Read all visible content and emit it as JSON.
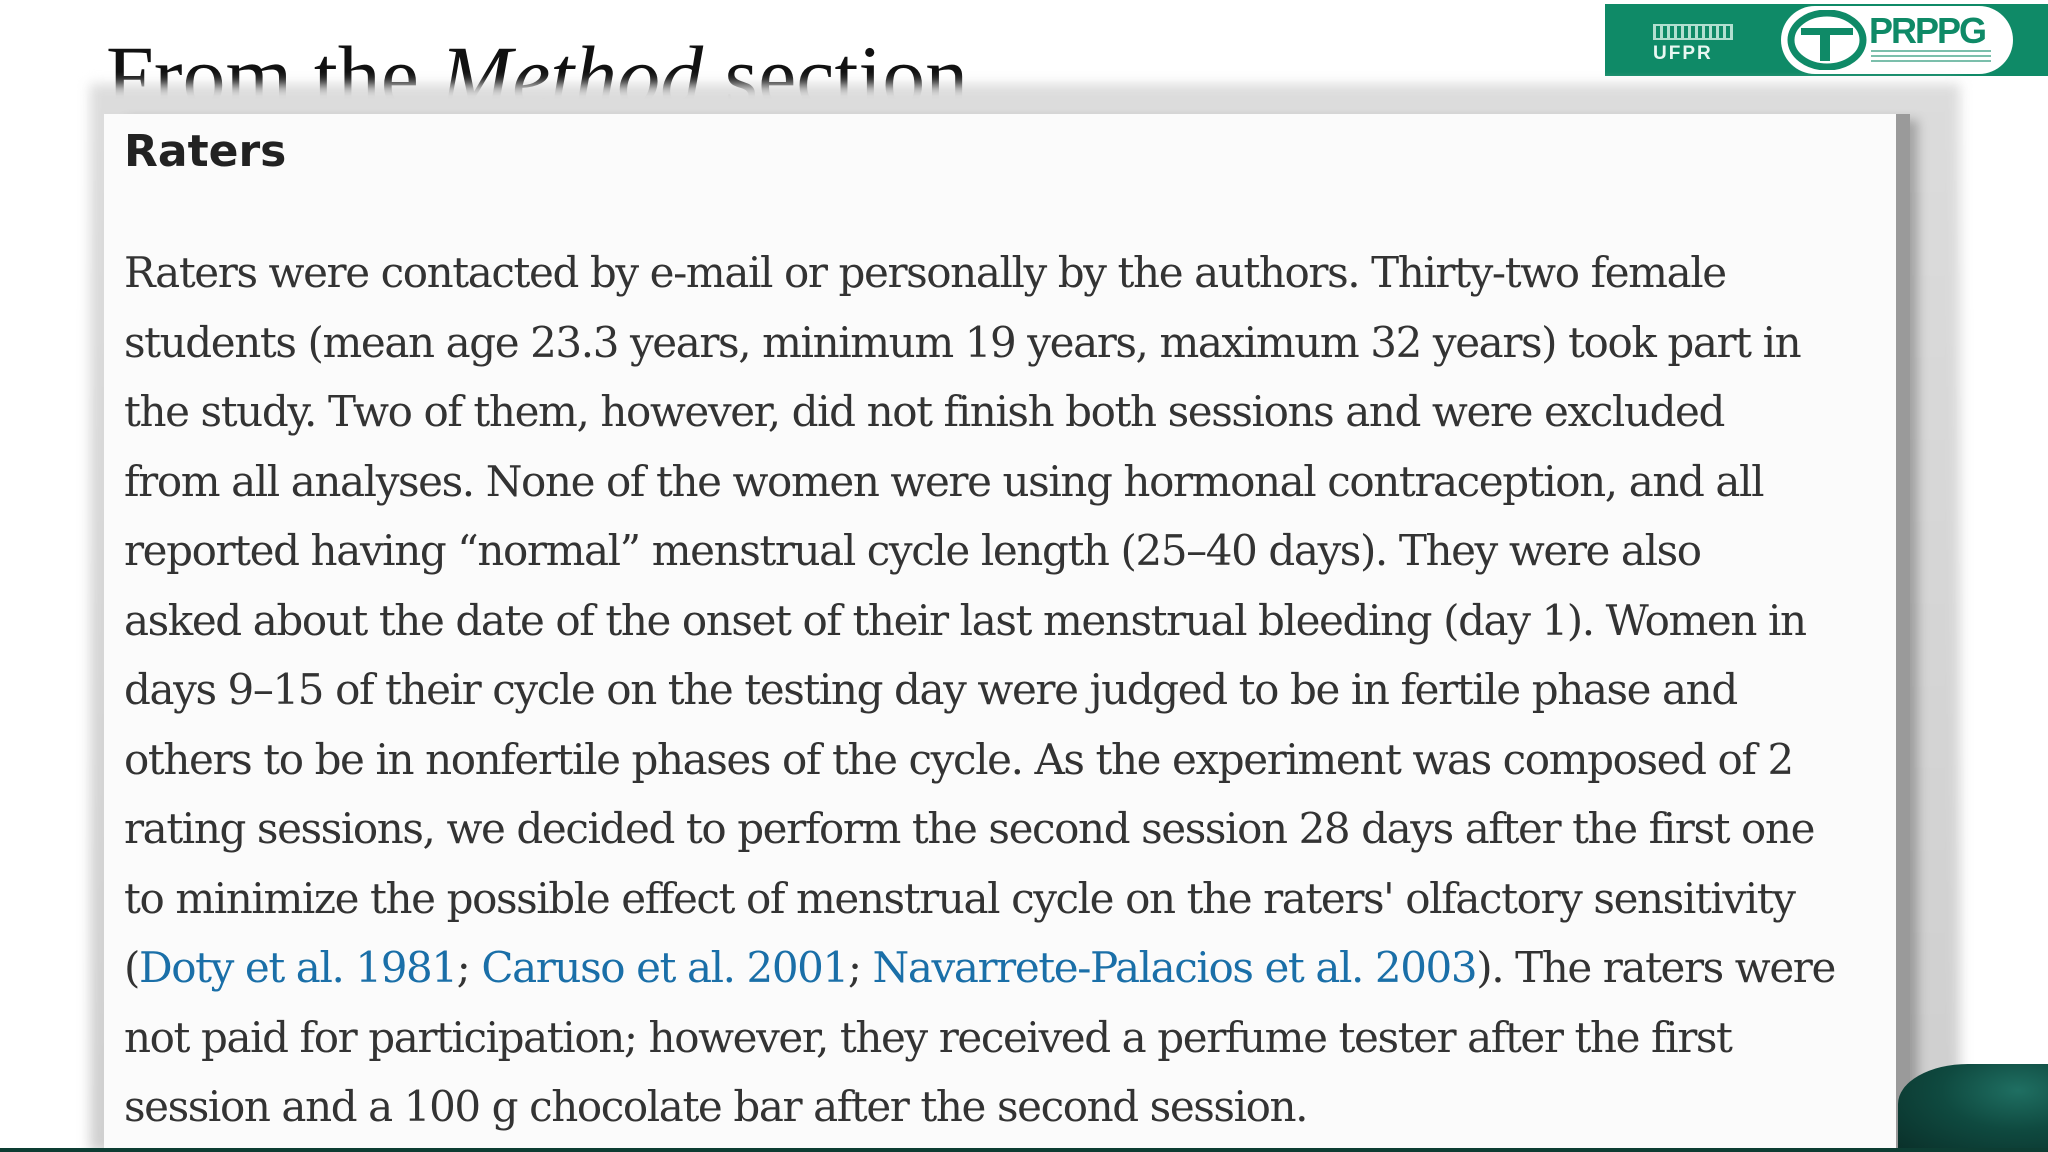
{
  "slide": {
    "title_prefix": "From the ",
    "title_emphasis": "Method",
    "title_suffix": " section"
  },
  "logos": {
    "ufpr_text": "UFPR",
    "prppg_text": "PRPPG"
  },
  "article": {
    "heading": "Raters",
    "lines": [
      "Raters were contacted by e-mail or personally by the authors. Thirty-two female",
      "students (mean age 23.3 years, minimum 19 years, maximum 32 years) took part in",
      "the study. Two of them, however, did not finish both sessions and were excluded",
      "from all analyses. None of the women were using hormonal contraception, and all",
      "reported having “normal” menstrual cycle length (25–40 days). They were also",
      "asked about the date of the onset of their last menstrual bleeding (day 1). Women in",
      "days 9–15 of their cycle on the testing day were judged to be in fertile phase and",
      "others to be in nonfertile phases of the cycle. As the experiment was composed of 2",
      "rating sessions, we decided to perform the second session 28 days after the first one",
      "to minimize the possible effect of menstrual cycle on the raters' olfactory sensitivity"
    ],
    "citation_line": {
      "open": "(",
      "cite1": "Doty et al. 1981",
      "sep1": "; ",
      "cite2": "Caruso et al. 2001",
      "sep2": "; ",
      "cite3": "Navarrete-Palacios et al. 2003",
      "rest": "). The raters were"
    },
    "lines_after": [
      "not paid for participation; however, they received a perfume tester after the first",
      "session and a 100 g chocolate bar after the second session."
    ]
  },
  "colors": {
    "logo_green": "#0f8a67",
    "link_blue": "#1a6fa8",
    "text": "#333333"
  }
}
